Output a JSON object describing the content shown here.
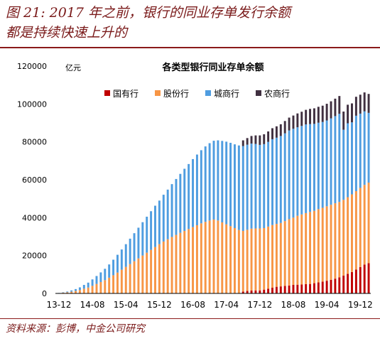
{
  "figure": {
    "title_line1": "图 21: 2017 年之前，银行的同业存单发行余额",
    "title_line2": "都是持续快速上升的",
    "source": "资料来源：彭博，中金公司研究"
  },
  "colors": {
    "state": "#c00000",
    "joint": "#f79646",
    "city": "#4f9de0",
    "rural": "#403040"
  },
  "chart_data": {
    "type": "bar",
    "stacked": true,
    "title": "各类型银行同业存单余额",
    "ylabel": "亿元",
    "ylim": [
      0,
      120000
    ],
    "yticks": [
      0,
      20000,
      40000,
      60000,
      80000,
      100000,
      120000
    ],
    "xtick_labels": [
      "13-12",
      "14-08",
      "15-04",
      "15-12",
      "16-08",
      "17-04",
      "17-12",
      "18-08",
      "19-04",
      "19-12"
    ],
    "xtick_index": [
      0,
      8,
      16,
      24,
      32,
      40,
      48,
      56,
      64,
      72
    ],
    "legend_position": "top",
    "categories": [
      "13-12",
      "14-01",
      "14-02",
      "14-03",
      "14-04",
      "14-05",
      "14-06",
      "14-07",
      "14-08",
      "14-09",
      "14-10",
      "14-11",
      "14-12",
      "15-01",
      "15-02",
      "15-03",
      "15-04",
      "15-05",
      "15-06",
      "15-07",
      "15-08",
      "15-09",
      "15-10",
      "15-11",
      "15-12",
      "16-01",
      "16-02",
      "16-03",
      "16-04",
      "16-05",
      "16-06",
      "16-07",
      "16-08",
      "16-09",
      "16-10",
      "16-11",
      "16-12",
      "17-01",
      "17-02",
      "17-03",
      "17-04",
      "17-05",
      "17-06",
      "17-07",
      "17-08",
      "17-09",
      "17-10",
      "17-11",
      "17-12",
      "18-01",
      "18-02",
      "18-03",
      "18-04",
      "18-05",
      "18-06",
      "18-07",
      "18-08",
      "18-09",
      "18-10",
      "18-11",
      "18-12",
      "19-01",
      "19-02",
      "19-03",
      "19-04",
      "19-05",
      "19-06",
      "19-07",
      "19-08",
      "19-09",
      "19-10",
      "19-11",
      "19-12",
      "20-01",
      "20-02"
    ],
    "series": [
      {
        "name": "国有行",
        "color_key": "state",
        "values": [
          0,
          0,
          0,
          0,
          0,
          0,
          0,
          0,
          0,
          0,
          0,
          0,
          0,
          0,
          0,
          0,
          0,
          0,
          0,
          0,
          0,
          0,
          0,
          0,
          0,
          0,
          0,
          0,
          0,
          0,
          0,
          0,
          0,
          0,
          0,
          0,
          0,
          0,
          0,
          0,
          0,
          0,
          0,
          0,
          1000,
          1300,
          1500,
          1600,
          1600,
          2000,
          2500,
          3000,
          3500,
          3700,
          4000,
          4200,
          4500,
          4600,
          4700,
          4900,
          5000,
          5400,
          5800,
          6200,
          6700,
          7200,
          7800,
          8500,
          9400,
          10300,
          11300,
          12600,
          13900,
          15200,
          16000
        ]
      },
      {
        "name": "股份行",
        "color_key": "joint",
        "values": [
          200,
          400,
          600,
          900,
          1300,
          1800,
          2500,
          3100,
          4000,
          5000,
          6000,
          7000,
          8300,
          9600,
          11000,
          12500,
          14000,
          15500,
          17000,
          18500,
          20000,
          21500,
          23000,
          24500,
          26000,
          27400,
          28600,
          29800,
          30900,
          32000,
          33000,
          34000,
          35000,
          36000,
          37000,
          37800,
          38500,
          39000,
          38500,
          37500,
          36500,
          35500,
          34500,
          33500,
          32000,
          32300,
          32700,
          32700,
          32700,
          32500,
          32800,
          33100,
          33200,
          33500,
          34200,
          35000,
          35500,
          36400,
          37000,
          37500,
          38000,
          38200,
          38700,
          39000,
          39300,
          39600,
          39800,
          39800,
          40000,
          40500,
          41000,
          41400,
          41800,
          42100,
          42500
        ]
      },
      {
        "name": "城商行",
        "color_key": "city",
        "values": [
          50,
          200,
          400,
          700,
          1000,
          1400,
          2000,
          2600,
          3400,
          4200,
          5100,
          6000,
          7000,
          8200,
          9400,
          10700,
          12000,
          13400,
          14800,
          16200,
          17600,
          19000,
          20400,
          21800,
          23000,
          24700,
          26200,
          27900,
          29500,
          31100,
          32800,
          34300,
          35900,
          37300,
          38600,
          39800,
          40800,
          41600,
          42300,
          43000,
          43600,
          44000,
          44200,
          44600,
          44800,
          44900,
          44900,
          44600,
          44100,
          44300,
          44700,
          45300,
          45500,
          45900,
          46300,
          46800,
          46900,
          46700,
          46700,
          46800,
          46400,
          45900,
          45600,
          45300,
          45300,
          45600,
          46000,
          46500,
          37000,
          39000,
          38000,
          39800,
          39200,
          38800,
          36800
        ]
      },
      {
        "name": "农商行",
        "color_key": "rural",
        "values": [
          0,
          0,
          0,
          0,
          0,
          0,
          0,
          0,
          0,
          0,
          0,
          0,
          0,
          0,
          0,
          0,
          0,
          0,
          0,
          0,
          0,
          0,
          0,
          0,
          0,
          0,
          0,
          0,
          0,
          0,
          0,
          0,
          0,
          0,
          0,
          0,
          0,
          0,
          0,
          0,
          0,
          0,
          0,
          0,
          3000,
          3500,
          4000,
          4500,
          5000,
          5200,
          5500,
          5800,
          6000,
          6200,
          6500,
          6800,
          7000,
          7300,
          7500,
          7700,
          8000,
          8200,
          8400,
          8600,
          8800,
          9000,
          9200,
          9400,
          9600,
          9800,
          10000,
          10000,
          10000,
          10000,
          10000
        ]
      }
    ]
  }
}
